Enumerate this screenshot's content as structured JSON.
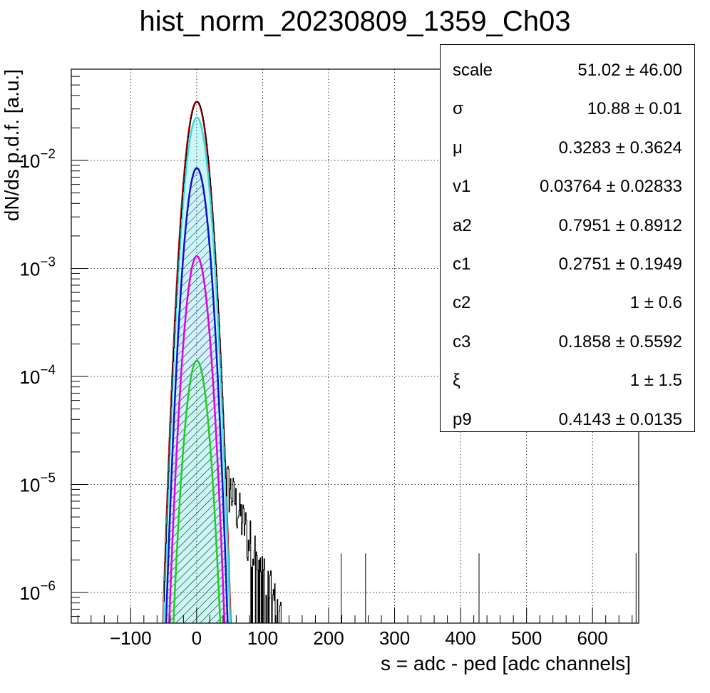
{
  "title": "hist_norm_20230809_1359_Ch03",
  "chart_data": {
    "type": "line",
    "title": "hist_norm_20230809_1359_Ch03",
    "xlabel": "s = adc - ped [adc channels]",
    "ylabel": "dN/ds p.d.f. [a.u.]",
    "xlim": [
      -190,
      670
    ],
    "ylim": [
      5.2e-07,
      0.07
    ],
    "yscale": "log",
    "grid": true,
    "x_ticks": [
      {
        "value": -100,
        "label": "−100"
      },
      {
        "value": 0,
        "label": "0"
      },
      {
        "value": 100,
        "label": "100"
      },
      {
        "value": 200,
        "label": "200"
      },
      {
        "value": 300,
        "label": "300"
      },
      {
        "value": 400,
        "label": "400"
      },
      {
        "value": 500,
        "label": "500"
      },
      {
        "value": 600,
        "label": "600"
      }
    ],
    "y_ticks": [
      {
        "value": 1e-06,
        "base": "10",
        "exp": "−6"
      },
      {
        "value": 1e-05,
        "base": "10",
        "exp": "−5"
      },
      {
        "value": 0.0001,
        "base": "10",
        "exp": "−4"
      },
      {
        "value": 0.001,
        "base": "10",
        "exp": "−3"
      },
      {
        "value": 0.01,
        "base": "10",
        "exp": "−2"
      }
    ],
    "series": [
      {
        "color": "#e00000",
        "peak": 0.035,
        "mu": 0.3,
        "sigma": 10.9
      },
      {
        "color": "#33dddd",
        "peak": 0.025,
        "mu": 0.3,
        "sigma": 10.9,
        "fill": "#33dddd"
      },
      {
        "color": "#1010d0",
        "peak": 0.0085,
        "mu": 0.3,
        "sigma": 10.6,
        "hatch": "#000080"
      },
      {
        "color": "#e000e0",
        "peak": 0.0013,
        "mu": 0.3,
        "sigma": 10.6,
        "hatch": "#800080"
      },
      {
        "color": "#22cc22",
        "peak": 0.00014,
        "mu": 0.3,
        "sigma": 10.6,
        "hatch": "#008000"
      }
    ],
    "tail_spikes_x": [
      219,
      256,
      428,
      666
    ]
  },
  "stats": [
    {
      "name": "scale",
      "value": "51.02 ± 46.00"
    },
    {
      "name": "σ",
      "value": "10.88 ± 0.01"
    },
    {
      "name": "μ",
      "value": "0.3283 ± 0.3624"
    },
    {
      "name": "v1",
      "value": "0.03764 ± 0.02833"
    },
    {
      "name": "a2",
      "value": "0.7951 ± 0.8912"
    },
    {
      "name": "c1",
      "value": "0.2751 ± 0.1949"
    },
    {
      "name": "c2",
      "value": "1 ± 0.6"
    },
    {
      "name": "c3",
      "value": "0.1858 ± 0.5592"
    },
    {
      "name": "ξ",
      "value": "1 ± 1.5"
    },
    {
      "name": "p9",
      "value": "0.4143 ± 0.0135"
    }
  ]
}
